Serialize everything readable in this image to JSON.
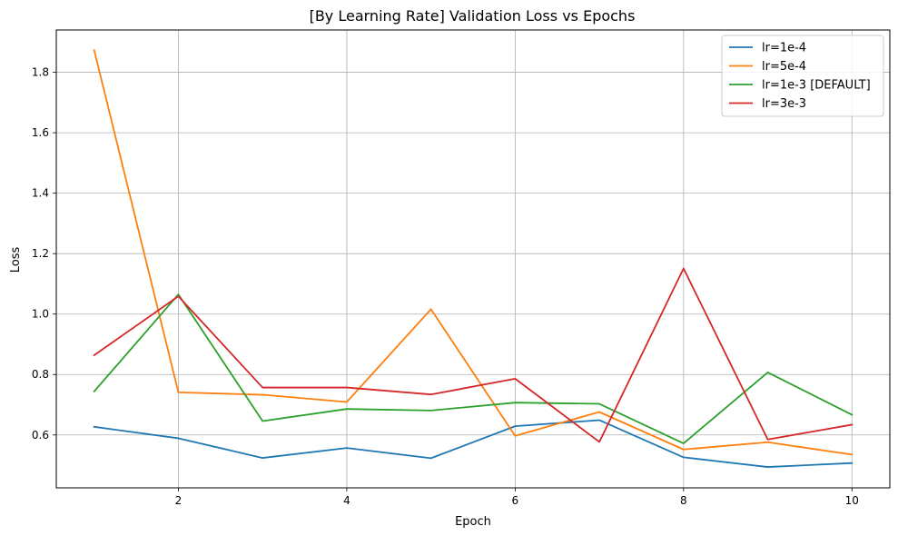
{
  "chart_data": {
    "type": "line",
    "title": "[By Learning Rate] Validation Loss vs Epochs",
    "xlabel": "Epoch",
    "ylabel": "Loss",
    "x": [
      1,
      2,
      3,
      4,
      5,
      6,
      7,
      8,
      9,
      10
    ],
    "xlim": [
      0.55,
      10.45
    ],
    "ylim": [
      0.425,
      1.94
    ],
    "xticks": [
      2,
      4,
      6,
      8,
      10
    ],
    "yticks": [
      0.6,
      0.8,
      1.0,
      1.2,
      1.4,
      1.6,
      1.8
    ],
    "ytick_labels": [
      "0.6",
      "0.8",
      "1.0",
      "1.2",
      "1.4",
      "1.6",
      "1.8"
    ],
    "grid": true,
    "legend_position": "top-right",
    "series": [
      {
        "name": "lr=1e-4",
        "color": "#1f77b4",
        "values": [
          0.627,
          0.589,
          0.524,
          0.557,
          0.523,
          0.629,
          0.649,
          0.526,
          0.494,
          0.507
        ]
      },
      {
        "name": "lr=5e-4",
        "color": "#ff7f0e",
        "values": [
          1.873,
          0.741,
          0.733,
          0.709,
          1.016,
          0.597,
          0.676,
          0.552,
          0.576,
          0.535
        ]
      },
      {
        "name": "lr=1e-3 [DEFAULT]",
        "color": "#2ca02c",
        "values": [
          0.744,
          1.065,
          0.646,
          0.686,
          0.681,
          0.707,
          0.703,
          0.572,
          0.807,
          0.667
        ]
      },
      {
        "name": "lr=3e-3",
        "color": "#d62728",
        "values": [
          0.864,
          1.059,
          0.757,
          0.757,
          0.734,
          0.786,
          0.577,
          1.151,
          0.585,
          0.634
        ]
      }
    ]
  }
}
